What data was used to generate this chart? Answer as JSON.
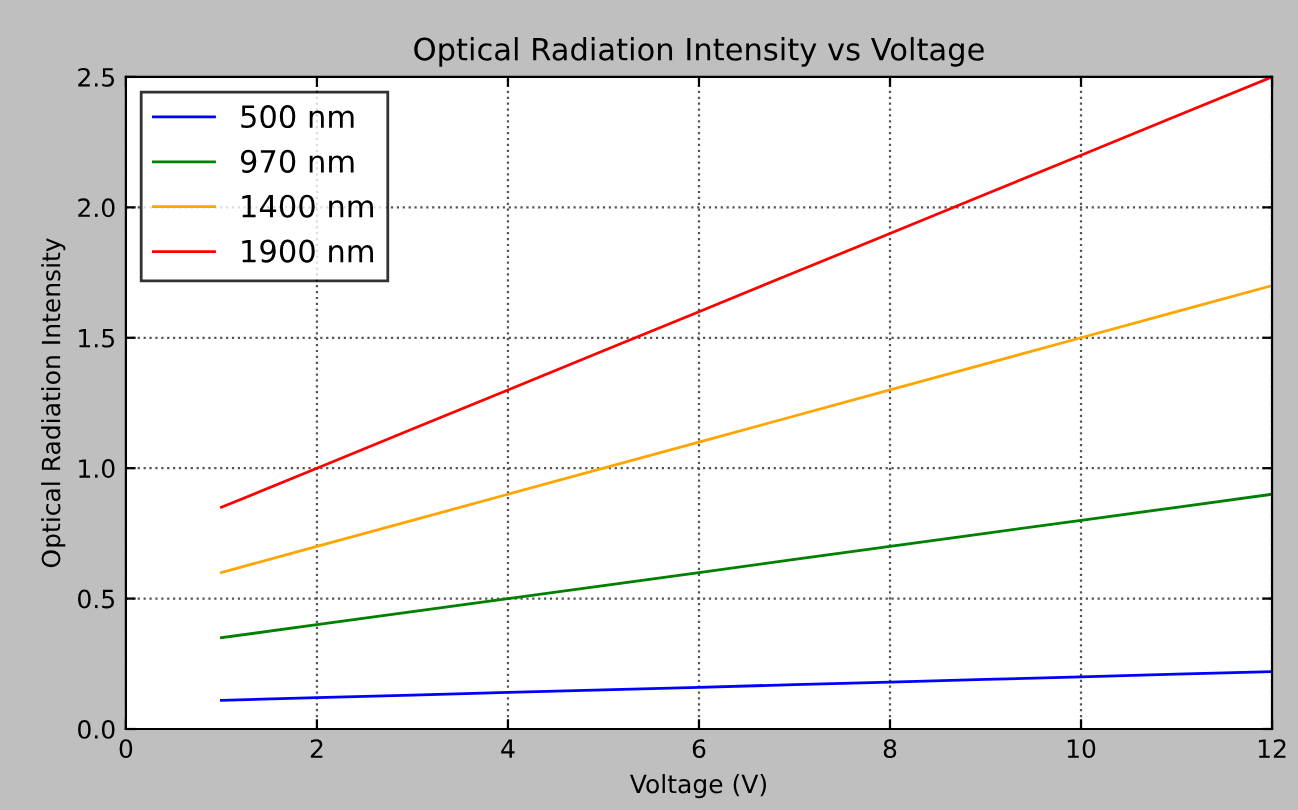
{
  "chart_data": {
    "type": "line",
    "title": "Optical Radiation Intensity vs Voltage",
    "xlabel": "Voltage (V)",
    "ylabel": "Optical Radiation Intensity",
    "x": [
      1,
      2,
      3,
      4,
      5,
      6,
      7,
      8,
      9,
      10,
      11,
      12
    ],
    "series": [
      {
        "name": "500 nm",
        "color": "#0000ff",
        "values": [
          0.11,
          0.12,
          0.13,
          0.14,
          0.15,
          0.16,
          0.17,
          0.18,
          0.19,
          0.2,
          0.21,
          0.22
        ]
      },
      {
        "name": "970 nm",
        "color": "#008000",
        "values": [
          0.35,
          0.4,
          0.45,
          0.5,
          0.55,
          0.6,
          0.65,
          0.7,
          0.75,
          0.8,
          0.85,
          0.9
        ]
      },
      {
        "name": "1400 nm",
        "color": "#ffa500",
        "values": [
          0.6,
          0.7,
          0.8,
          0.9,
          1.0,
          1.1,
          1.2,
          1.3,
          1.4,
          1.5,
          1.6,
          1.7
        ]
      },
      {
        "name": "1900 nm",
        "color": "#ff0000",
        "values": [
          0.85,
          1.0,
          1.15,
          1.3,
          1.45,
          1.6,
          1.75,
          1.9,
          2.05,
          2.2,
          2.35,
          2.5
        ]
      }
    ],
    "xlim": [
      0,
      12
    ],
    "xticks": [
      0,
      2,
      4,
      6,
      8,
      10,
      12
    ],
    "ylim": [
      0,
      2.5
    ],
    "yticks": [
      {
        "value": 0,
        "label": "0.0"
      },
      0.5,
      {
        "value": 1,
        "label": "1.0"
      },
      1.5,
      {
        "value": 2,
        "label": "2.0"
      },
      2.5
    ],
    "grid": true,
    "legend": "top left",
    "marker": "none",
    "line_style": "solid"
  }
}
